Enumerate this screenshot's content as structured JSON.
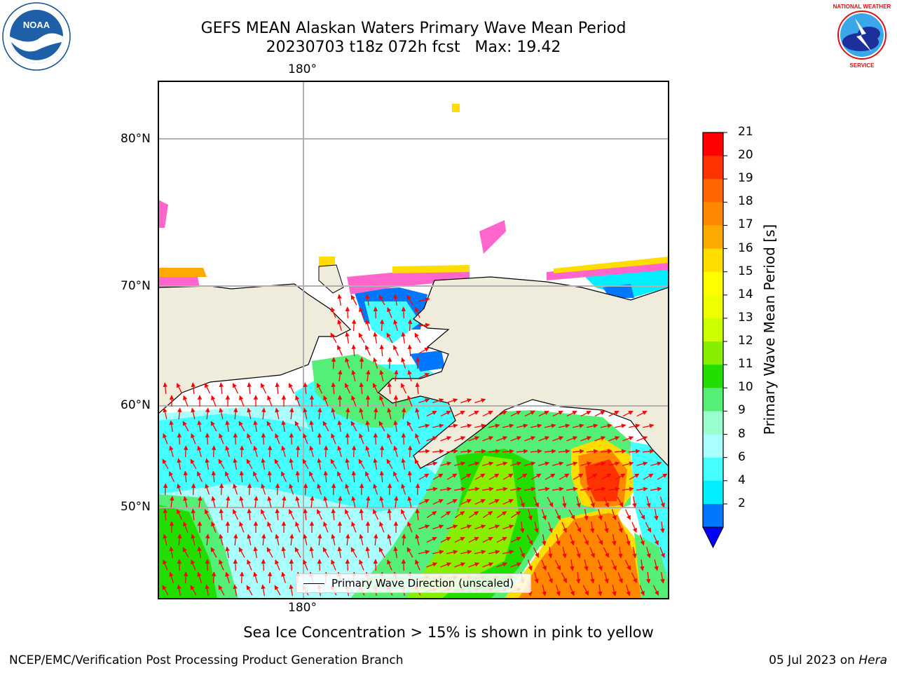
{
  "title": {
    "line1": "GEFS MEAN Alaskan Waters Primary Wave Mean Period",
    "line2": "20230703 t18z 072h fcst   Max: 19.42"
  },
  "map": {
    "lon_label_top": "180°",
    "lon_label_bottom": "180°",
    "lat_labels": [
      "80°N",
      "70°N",
      "60°N",
      "50°N"
    ],
    "legend_text": "Primary Wave Direction (unscaled)",
    "arrow_color": "#ff0000",
    "land_color": "#efecdc"
  },
  "colorbar": {
    "label": "Primary Wave Mean Period [s]",
    "ticks": [
      "21",
      "20",
      "19",
      "18",
      "17",
      "16",
      "15",
      "14",
      "13",
      "12",
      "11",
      "10",
      "9",
      "8",
      "6",
      "4",
      "2"
    ],
    "colors": [
      "#ff0000",
      "#ff3300",
      "#ff6600",
      "#ff8800",
      "#ffaa00",
      "#ffdd00",
      "#ffff00",
      "#eeff00",
      "#ccff00",
      "#88ee00",
      "#22dd00",
      "#55ee77",
      "#99ffcc",
      "#aaffff",
      "#44ffff",
      "#00eeff",
      "#0077ff"
    ],
    "extend_color": "#0000ff"
  },
  "caption": "Sea Ice Concentration > 15% is shown in pink to yellow",
  "footer": {
    "left": "NCEP/EMC/Verification Post Processing Product Generation Branch",
    "date": "05 Jul 2023 on ",
    "machine": "Hera"
  },
  "logos": {
    "noaa_text": "NOAA",
    "nws_text": "NATIONAL WEATHER SERVICE"
  }
}
